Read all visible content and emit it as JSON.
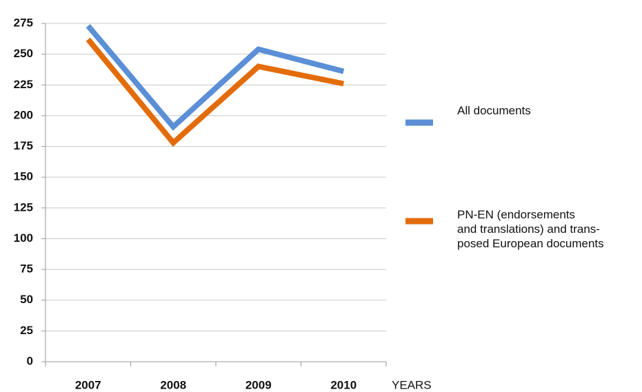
{
  "chart_data": {
    "type": "line",
    "categories": [
      "2007",
      "2008",
      "2009",
      "2010"
    ],
    "x_label": "YEARS",
    "series": [
      {
        "name": "All documents",
        "color": "#5b8fd6",
        "values": [
          273,
          191,
          254,
          236
        ]
      },
      {
        "name": "PN-EN (endorsements\nand translations) and trans-\nposed European documents",
        "color": "#e36c0a",
        "values": [
          262,
          178,
          240,
          226
        ]
      }
    ],
    "ylim": [
      0,
      275
    ],
    "yticks": [
      0,
      25,
      50,
      75,
      100,
      125,
      150,
      175,
      200,
      225,
      250,
      275
    ],
    "grid": true,
    "legend": "right"
  }
}
